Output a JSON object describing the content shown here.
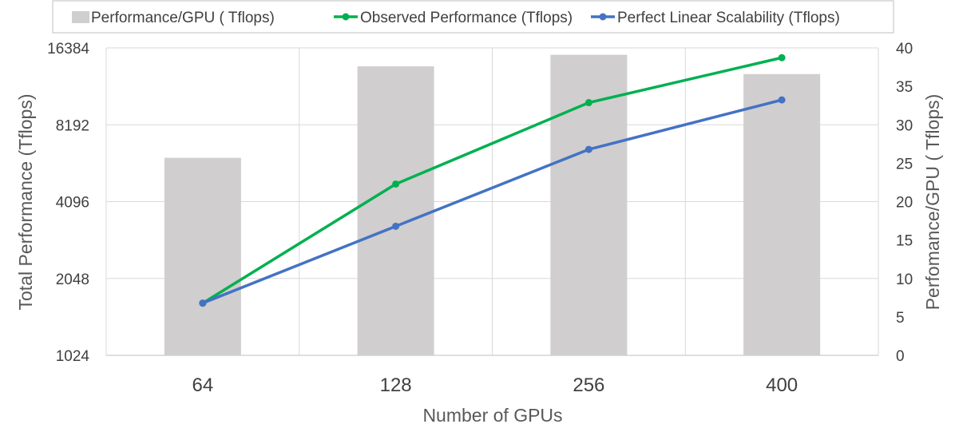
{
  "chart_data": {
    "type": "bar",
    "categories": [
      "64",
      "128",
      "256",
      "400"
    ],
    "xlabel": "Number of GPUs",
    "ylabel": "Total Performance (Tflops)",
    "ylabel_right": "Perfomance/GPU ( Tflops)",
    "y_left_scale": "log2",
    "y_left_ticks": [
      "1024",
      "2048",
      "4096",
      "8192",
      "16384"
    ],
    "y_left_lim": [
      1024,
      16384
    ],
    "y_right_ticks": [
      "0",
      "5",
      "10",
      "15",
      "20",
      "25",
      "30",
      "35",
      "40"
    ],
    "y_right_lim": [
      0,
      40
    ],
    "grid": true,
    "legend_position": "top",
    "series": [
      {
        "name": "Performance/GPU ( Tflops)",
        "kind": "bar",
        "axis": "right",
        "color": "#d0cece",
        "values": [
          25.7,
          37.6,
          39.1,
          36.6
        ]
      },
      {
        "name": "Observed Performance (Tflops)",
        "kind": "line",
        "axis": "left",
        "color": "#00b050",
        "values": [
          1640,
          4800,
          10000,
          15000
        ]
      },
      {
        "name": "Perfect Linear Scalability (Tflops)",
        "kind": "line",
        "axis": "left",
        "color": "#4472c4",
        "values": [
          1640,
          3280,
          6560,
          10250
        ]
      }
    ]
  }
}
